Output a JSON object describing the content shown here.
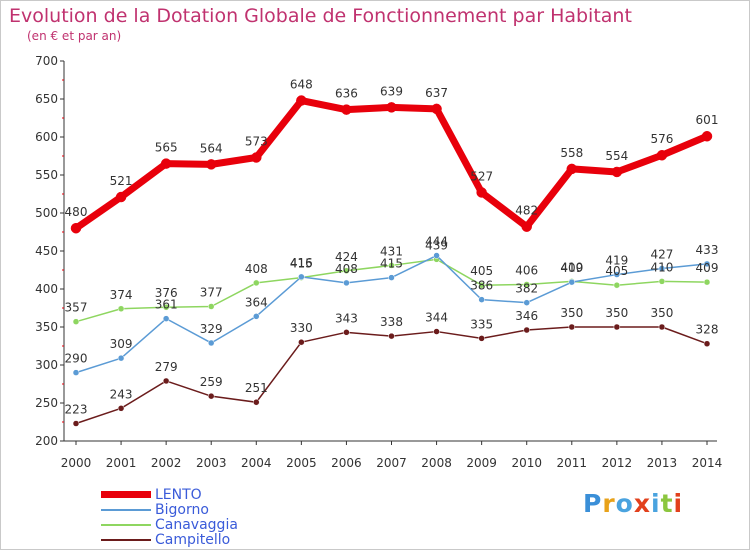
{
  "chart_data": {
    "type": "line",
    "title": "Evolution de la Dotation Globale de Fonctionnement par Habitant",
    "subtitle": "(en € et par an)",
    "x": [
      "2000",
      "2001",
      "2002",
      "2003",
      "2004",
      "2005",
      "2006",
      "2007",
      "2008",
      "2009",
      "2010",
      "2011",
      "2012",
      "2013",
      "2014"
    ],
    "ylim": [
      200,
      700
    ],
    "yticks": [
      200,
      250,
      300,
      350,
      400,
      450,
      500,
      550,
      600,
      650,
      700
    ],
    "grid": false,
    "legend_position": "bottom-left",
    "series": [
      {
        "name": "LENTO",
        "color": "#e8000b",
        "values": [
          480,
          521,
          565,
          564,
          573,
          648,
          636,
          639,
          637,
          527,
          482,
          558,
          554,
          576,
          601
        ]
      },
      {
        "name": "Bigorno",
        "color": "#5b9bd5",
        "values": [
          290,
          309,
          361,
          329,
          364,
          416,
          408,
          415,
          444,
          386,
          382,
          409,
          419,
          427,
          433
        ]
      },
      {
        "name": "Canavaggia",
        "color": "#8ed660",
        "values": [
          357,
          374,
          376,
          377,
          408,
          415,
          424,
          431,
          439,
          405,
          406,
          410,
          405,
          410,
          409
        ]
      },
      {
        "name": "Campitello",
        "color": "#6b1c1c",
        "values": [
          223,
          243,
          279,
          259,
          251,
          330,
          343,
          338,
          344,
          335,
          346,
          350,
          350,
          350,
          328
        ]
      }
    ]
  },
  "logo": {
    "text": "Proxiti",
    "letter_colors": [
      "#3a8fd8",
      "#e8a21a",
      "#4aa3df",
      "#e2401c",
      "#4aa3df",
      "#8cc63f",
      "#e2401c"
    ]
  }
}
